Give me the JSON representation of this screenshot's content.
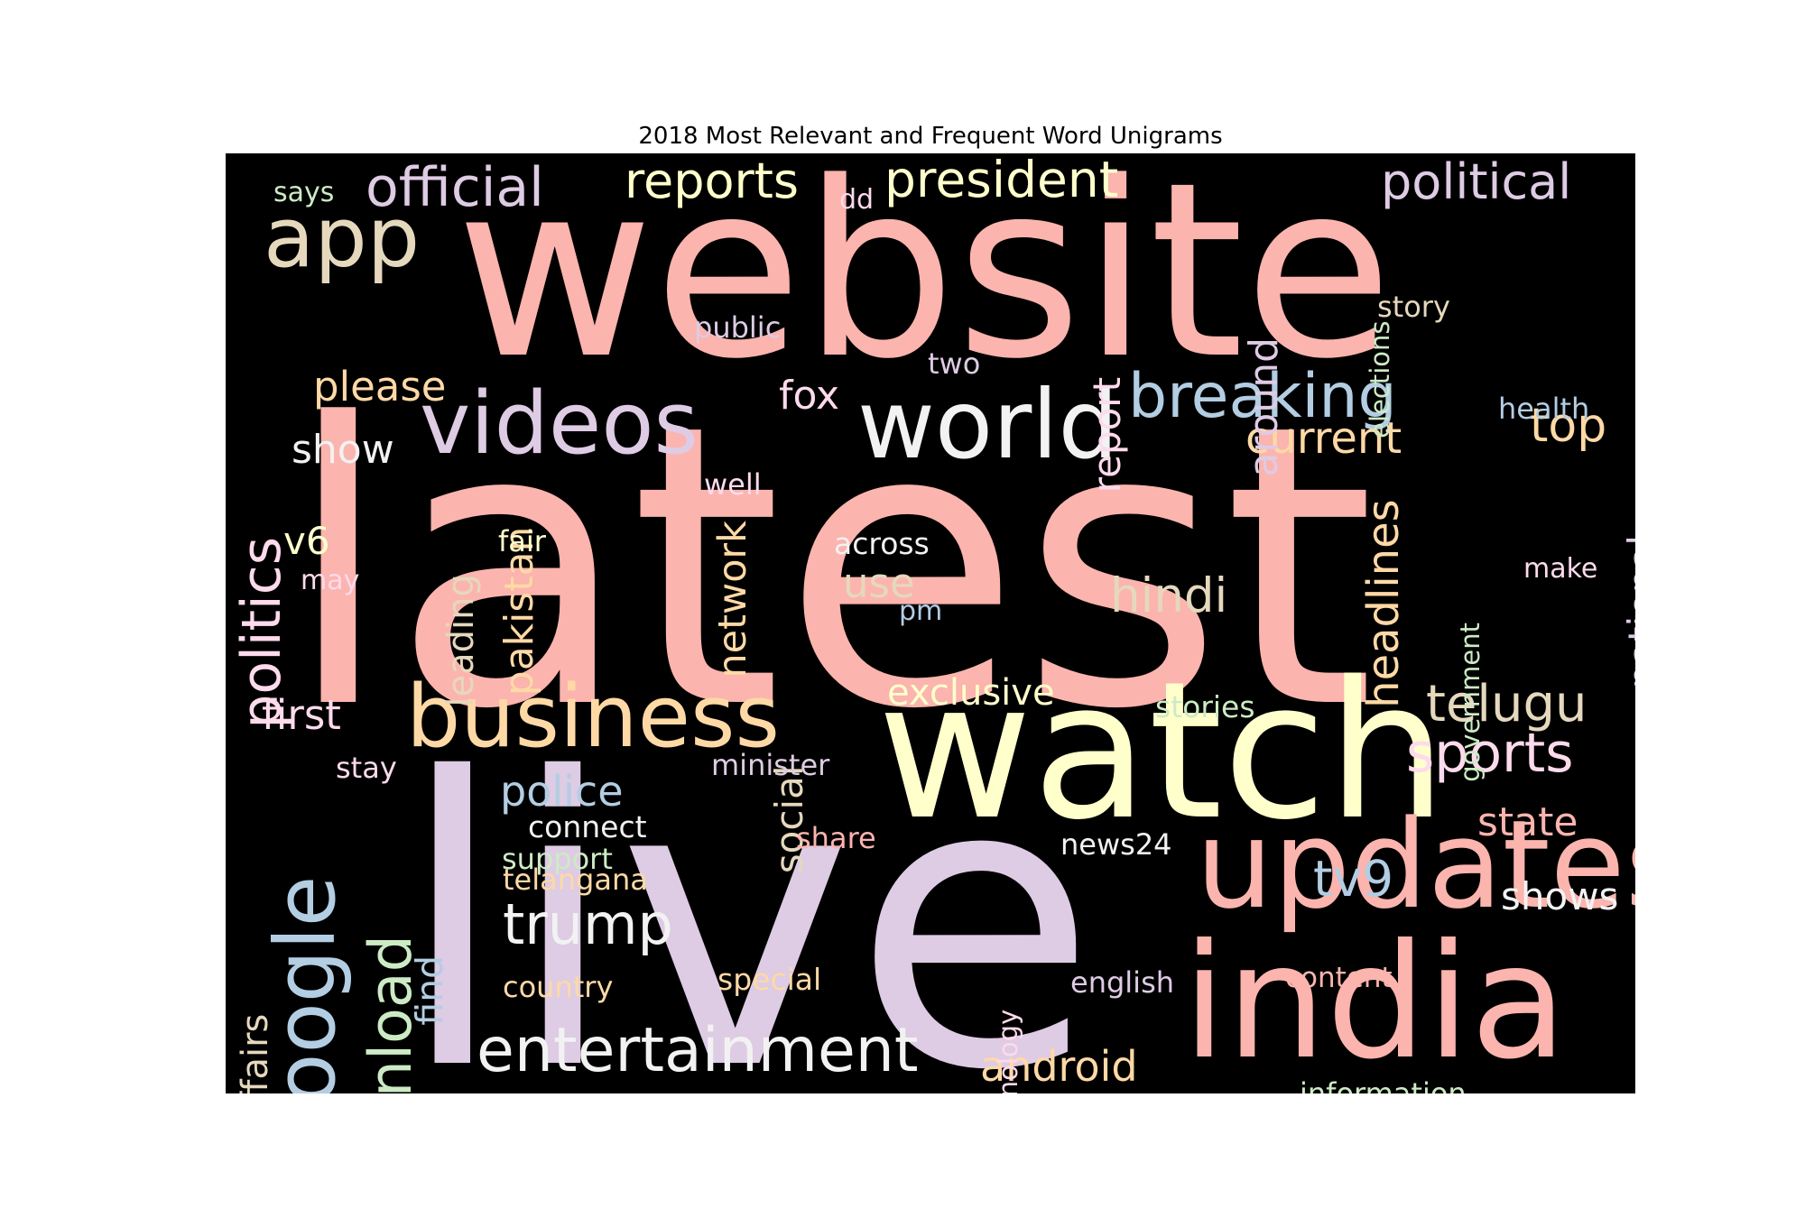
{
  "chart_data": {
    "type": "wordcloud",
    "title": "2018 Most Relevant and Frequent Word Unigrams",
    "background": "#000000",
    "palette": [
      "#fbb4ae",
      "#decbe4",
      "#ffffcc",
      "#b3cde3",
      "#fed9a6",
      "#e5d8bd",
      "#fddaec",
      "#ccebc5",
      "#f2f2f2"
    ],
    "words": [
      {
        "text": "latest",
        "color": "#fbb4ae"
      },
      {
        "text": "website",
        "color": "#fbb4ae"
      },
      {
        "text": "live",
        "color": "#decbe4"
      },
      {
        "text": "watch",
        "color": "#ffffcc"
      },
      {
        "text": "india",
        "color": "#fbb4ae"
      },
      {
        "text": "updates",
        "color": "#fbb4ae"
      },
      {
        "text": "world",
        "color": "#f2f2f2"
      },
      {
        "text": "business",
        "color": "#fed9a6"
      },
      {
        "text": "videos",
        "color": "#decbe4"
      },
      {
        "text": "google",
        "color": "#b3cde3"
      },
      {
        "text": "app",
        "color": "#e5d8bd"
      },
      {
        "text": "entertainment",
        "color": "#f2f2f2"
      },
      {
        "text": "breaking",
        "color": "#b3cde3"
      },
      {
        "text": "download",
        "color": "#ccebc5"
      },
      {
        "text": "politics",
        "color": "#fddaec"
      },
      {
        "text": "official",
        "color": "#decbe4"
      },
      {
        "text": "president",
        "color": "#ffffcc"
      },
      {
        "text": "political",
        "color": "#decbe4"
      },
      {
        "text": "reports",
        "color": "#ffffcc"
      },
      {
        "text": "trump",
        "color": "#f2f2f2"
      },
      {
        "text": "sports",
        "color": "#fddaec"
      },
      {
        "text": "telugu",
        "color": "#e5d8bd"
      },
      {
        "text": "hindi",
        "color": "#e5d8bd"
      },
      {
        "text": "tv9",
        "color": "#b3cde3"
      },
      {
        "text": "headlines",
        "color": "#fed9a6"
      },
      {
        "text": "national",
        "color": "#decbe4"
      },
      {
        "text": "current",
        "color": "#fed9a6"
      },
      {
        "text": "pakistan",
        "color": "#fed9a6"
      },
      {
        "text": "around",
        "color": "#decbe4"
      },
      {
        "text": "network",
        "color": "#fed9a6"
      },
      {
        "text": "report",
        "color": "#fddaec"
      },
      {
        "text": "top",
        "color": "#fed9a6"
      },
      {
        "text": "police",
        "color": "#b3cde3"
      },
      {
        "text": "social",
        "color": "#e5d8bd"
      },
      {
        "text": "leading",
        "color": "#e5d8bd"
      },
      {
        "text": "android",
        "color": "#fed9a6"
      },
      {
        "text": "please",
        "color": "#fed9a6"
      },
      {
        "text": "first",
        "color": "#fddaec"
      },
      {
        "text": "affairs",
        "color": "#e5d8bd"
      },
      {
        "text": "state",
        "color": "#fbb4ae"
      },
      {
        "text": "shows",
        "color": "#f2f2f2"
      },
      {
        "text": "exclusive",
        "color": "#ffffcc"
      },
      {
        "text": "use",
        "color": "#e5d8bd"
      },
      {
        "text": "fox",
        "color": "#fddaec"
      },
      {
        "text": "show",
        "color": "#f2f2f2"
      },
      {
        "text": "find",
        "color": "#b3cde3"
      },
      {
        "text": "v6",
        "color": "#ffffcc"
      },
      {
        "text": "elections",
        "color": "#ccebc5"
      },
      {
        "text": "government",
        "color": "#ccebc5"
      },
      {
        "text": "technology",
        "color": "#fddaec"
      },
      {
        "text": "minister",
        "color": "#decbe4"
      },
      {
        "text": "telangana",
        "color": "#fed9a6"
      },
      {
        "text": "connect",
        "color": "#f2f2f2"
      },
      {
        "text": "special",
        "color": "#fed9a6"
      },
      {
        "text": "country",
        "color": "#fed9a6"
      },
      {
        "text": "stories",
        "color": "#ccebc5"
      },
      {
        "text": "across",
        "color": "#f2f2f2"
      },
      {
        "text": "information",
        "color": "#ccebc5"
      },
      {
        "text": "english",
        "color": "#decbe4"
      },
      {
        "text": "content",
        "color": "#fbb4ae"
      },
      {
        "text": "news24",
        "color": "#f2f2f2"
      },
      {
        "text": "story",
        "color": "#e5d8bd"
      },
      {
        "text": "public",
        "color": "#decbe4"
      },
      {
        "text": "health",
        "color": "#b3cde3"
      },
      {
        "text": "well",
        "color": "#fddaec"
      },
      {
        "text": "share",
        "color": "#fbb4ae"
      },
      {
        "text": "support",
        "color": "#ccebc5"
      },
      {
        "text": "fair",
        "color": "#ffffcc"
      },
      {
        "text": "stay",
        "color": "#fddaec"
      },
      {
        "text": "two",
        "color": "#decbe4"
      },
      {
        "text": "make",
        "color": "#fddaec"
      },
      {
        "text": "says",
        "color": "#ccebc5"
      },
      {
        "text": "dd",
        "color": "#fddaec"
      },
      {
        "text": "may",
        "color": "#fddaec"
      },
      {
        "text": "pm",
        "color": "#b3cde3"
      }
    ]
  }
}
